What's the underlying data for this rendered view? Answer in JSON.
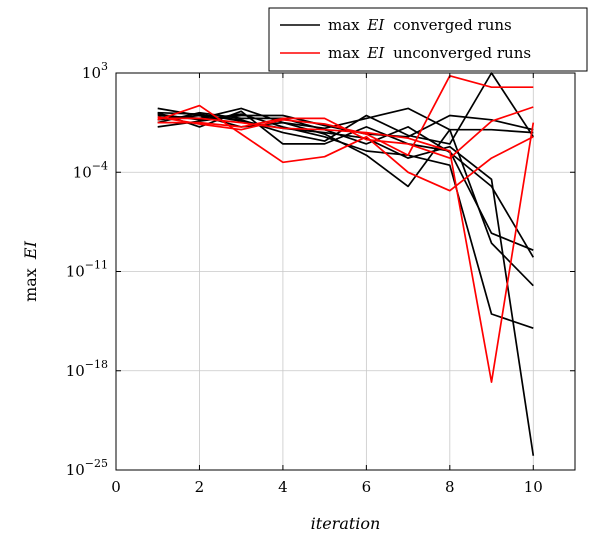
{
  "chart_data": {
    "type": "line",
    "xlabel": "iteration",
    "ylabel_prefix": "max",
    "ylabel_var": "EI",
    "xlim": [
      0,
      11
    ],
    "ylim_log10": [
      -25,
      3
    ],
    "yscale": "log",
    "grid": true,
    "legend_placement": "top-right, above plot",
    "x_ticks": [
      0,
      2,
      4,
      6,
      8,
      10
    ],
    "y_ticks_exp": [
      -25,
      -18,
      -11,
      -4,
      3
    ],
    "y_tick_base": "10",
    "legend": [
      {
        "prefix": "max",
        "var": "EI",
        "suffix": "converged runs",
        "color": "#000000"
      },
      {
        "prefix": "max",
        "var": "EI",
        "suffix": "unconverged runs",
        "color": "#ff0000"
      }
    ],
    "series_log10": [
      {
        "group": "converged",
        "color": "#000000",
        "x": [
          1,
          2,
          3,
          4,
          5,
          6,
          7,
          8,
          9,
          10
        ],
        "y": [
          0.2,
          -0.8,
          0.3,
          -2.0,
          -2.0,
          -0.8,
          -2.0,
          -2.5,
          -8.3,
          -9.5
        ]
      },
      {
        "group": "converged",
        "color": "#000000",
        "x": [
          1,
          2,
          3,
          4,
          5,
          6,
          7,
          8,
          9,
          10
        ],
        "y": [
          -0.3,
          0,
          -0.8,
          -0.5,
          -0.9,
          -0.2,
          0.5,
          -1.0,
          -9.0,
          -12.0
        ]
      },
      {
        "group": "converged",
        "color": "#000000",
        "x": [
          1,
          2,
          3,
          4,
          5,
          6,
          7,
          8,
          9,
          10
        ],
        "y": [
          0,
          -0.2,
          0.5,
          -0.5,
          -1.3,
          -2.8,
          -5.0,
          -1.0,
          -1.0,
          -1.2
        ]
      },
      {
        "group": "converged",
        "color": "#000000",
        "x": [
          1,
          2,
          3,
          4,
          5,
          6,
          7,
          8,
          9,
          10
        ],
        "y": [
          0.5,
          0,
          -0.3,
          -1.2,
          -1.8,
          0,
          -1.4,
          -2.0,
          3.0,
          -1.5
        ]
      },
      {
        "group": "converged",
        "color": "#000000",
        "x": [
          1,
          2,
          3,
          4,
          5,
          6,
          7,
          8,
          9,
          10
        ],
        "y": [
          -0.8,
          -0.4,
          0,
          0,
          -0.7,
          -1.3,
          -1.5,
          0,
          -0.3,
          -1.0
        ]
      },
      {
        "group": "converged",
        "color": "#000000",
        "x": [
          1,
          2,
          3,
          4,
          5,
          6,
          7,
          8,
          9,
          10
        ],
        "y": [
          -0.5,
          0.2,
          -0.2,
          -0.2,
          -1.0,
          -2.0,
          -0.8,
          -2.6,
          -5.0,
          -10.0
        ]
      },
      {
        "group": "converged",
        "color": "#000000",
        "x": [
          1,
          2,
          3,
          4,
          5,
          6,
          7,
          8,
          9,
          10
        ],
        "y": [
          0.1,
          -0.3,
          0.1,
          -0.8,
          -1.5,
          -2.5,
          -2.8,
          -3.5,
          -14.0,
          -15.0
        ]
      },
      {
        "group": "converged",
        "color": "#000000",
        "x": [
          1,
          2,
          3,
          4,
          5,
          6,
          7,
          8,
          9,
          10
        ],
        "y": [
          0.2,
          0.1,
          -0.4,
          -0.9,
          -1.2,
          -1.6,
          -3.0,
          -2.2,
          -4.5,
          -24.0
        ]
      },
      {
        "group": "unconverged",
        "color": "#ff0000",
        "x": [
          1,
          2,
          3,
          4,
          5,
          6,
          7,
          8,
          9,
          10
        ],
        "y": [
          -0.3,
          0.7,
          -1.3,
          -3.3,
          -2.9,
          -1.5,
          -4.0,
          -5.3,
          -3.0,
          -1.5
        ]
      },
      {
        "group": "unconverged",
        "color": "#ff0000",
        "x": [
          1,
          2,
          3,
          4,
          5,
          6,
          7,
          8,
          9,
          10
        ],
        "y": [
          -0.5,
          -0.5,
          -0.8,
          -0.2,
          -0.2,
          -1.7,
          -2.0,
          -3.0,
          -0.4,
          0.6
        ]
      },
      {
        "group": "unconverged",
        "color": "#ff0000",
        "x": [
          1,
          2,
          3,
          4,
          5,
          6,
          7,
          8,
          9,
          10
        ],
        "y": [
          -0.1,
          -0.6,
          -1.0,
          -0.3,
          -0.6,
          -1.3,
          -2.8,
          2.8,
          2.0,
          2.0
        ]
      },
      {
        "group": "unconverged",
        "color": "#ff0000",
        "x": [
          1,
          2,
          3,
          4,
          5,
          6,
          7,
          8,
          9,
          10
        ],
        "y": [
          -0.2,
          -0.2,
          -0.5,
          -0.9,
          -1.0,
          -1.2,
          -1.6,
          -2.5,
          -18.8,
          -0.5
        ]
      }
    ]
  }
}
